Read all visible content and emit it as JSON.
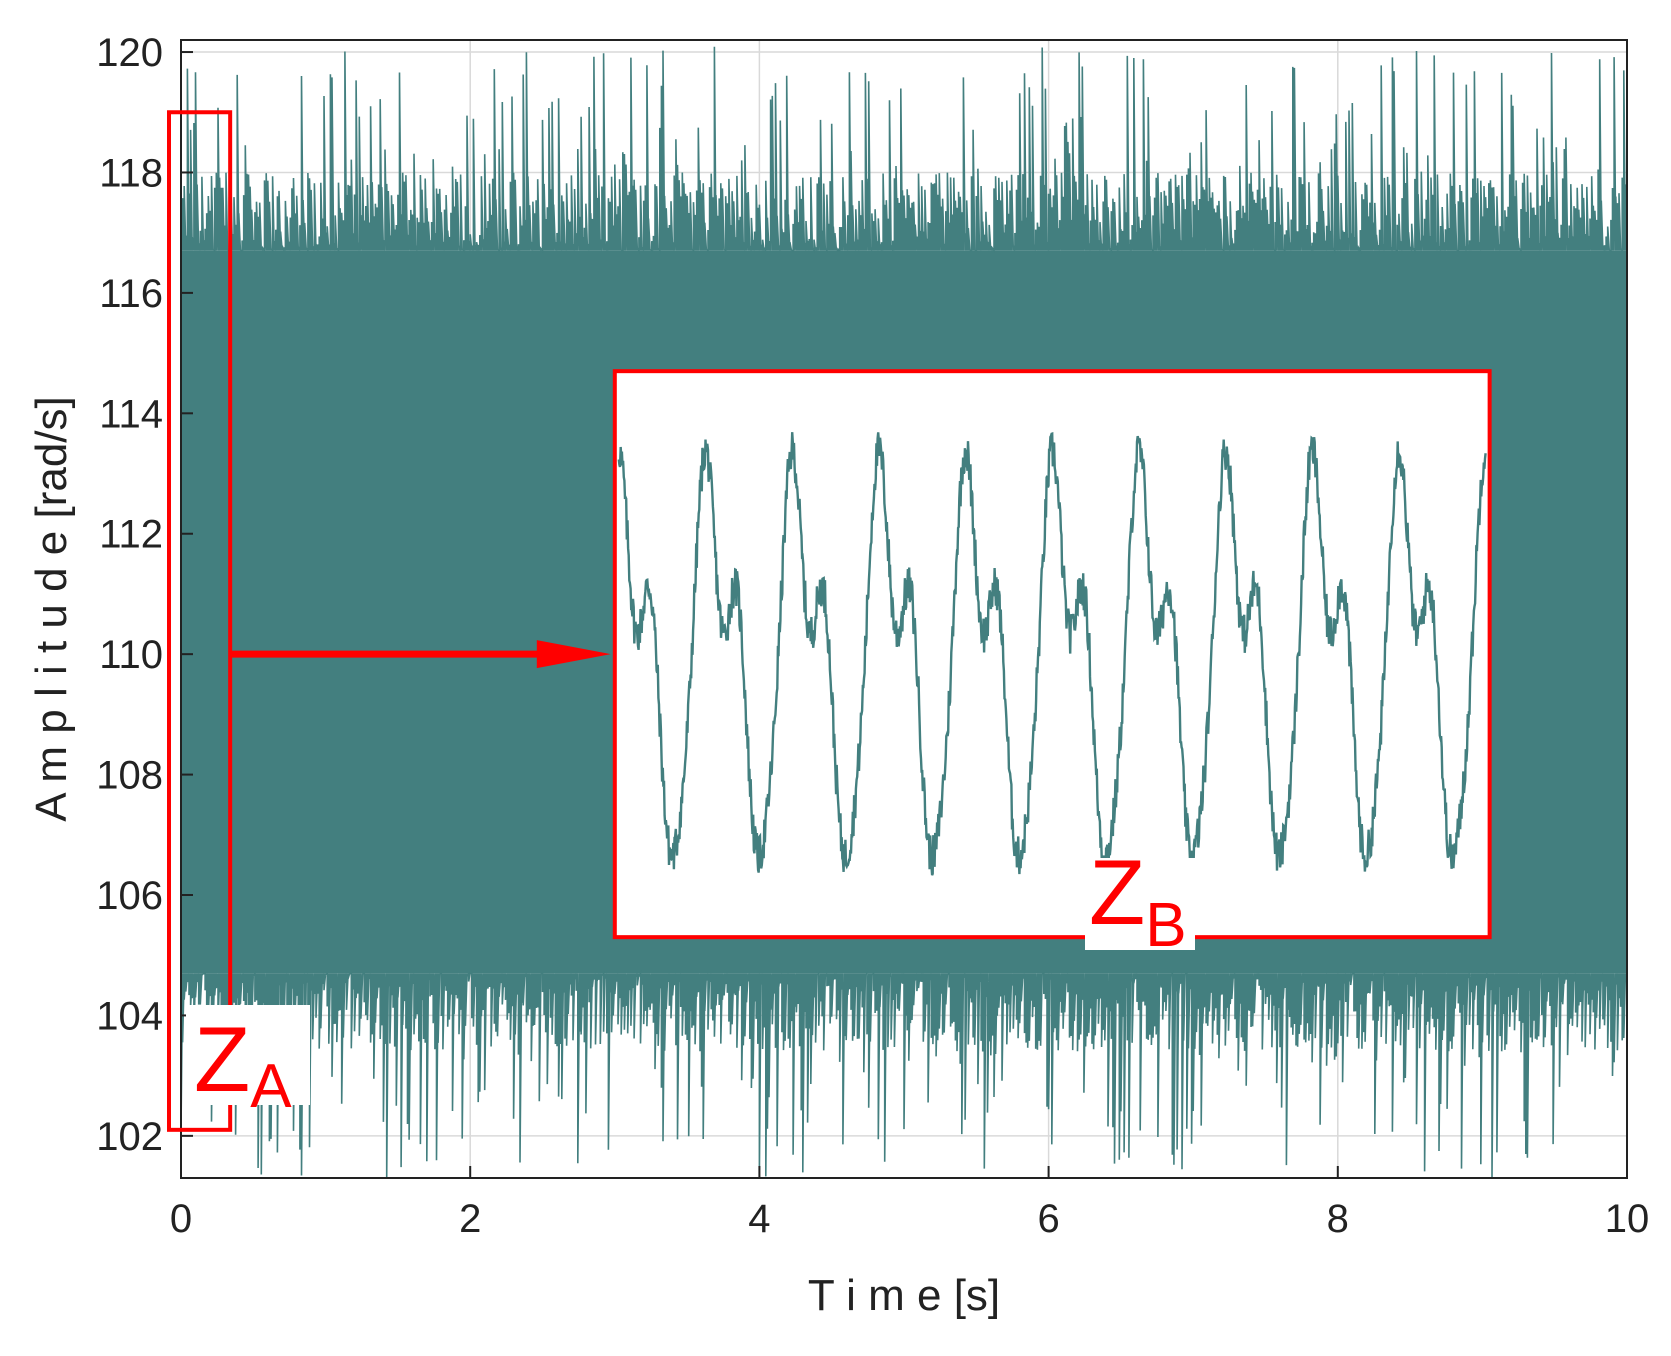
{
  "chart_data": {
    "type": "line",
    "xlabel": "T i m e [s]",
    "ylabel": "A m p l i t u d e  [rad/s]",
    "xlim": [
      0,
      10
    ],
    "ylim": [
      101.3,
      120.2
    ],
    "x_ticks": [
      "0",
      "2",
      "4",
      "6",
      "8",
      "10"
    ],
    "y_ticks": [
      "102",
      "104",
      "106",
      "108",
      "110",
      "112",
      "114",
      "116",
      "118",
      "120"
    ],
    "grid": true,
    "series_color": "#437f7f",
    "series": [
      {
        "signal_band": {
          "dense_min": 104.7,
          "dense_max": 116.7,
          "peak_max": 120.2,
          "trough_min": 101.3
        }
      }
    ],
    "annotations": [
      {
        "id": "ZA",
        "label_main": "Z",
        "label_sub": "A",
        "x_range": [
          0,
          0.34
        ],
        "y_range": [
          102.1,
          119.0
        ],
        "color": "#ff0000"
      },
      {
        "id": "ZB",
        "label_main": "Z",
        "label_sub": "B",
        "color": "#ff0000"
      }
    ],
    "zoom_inset": {
      "source": "ZA",
      "x_range": [
        3.0,
        9.05
      ],
      "y_range": [
        105.3,
        114.7
      ],
      "inner_series_range": [
        105.4,
        114.6
      ],
      "cycles": 10
    },
    "arrow": {
      "from": [
        0.34,
        110.0
      ],
      "to": [
        3.0,
        110.0
      ],
      "color": "#ff0000"
    }
  }
}
